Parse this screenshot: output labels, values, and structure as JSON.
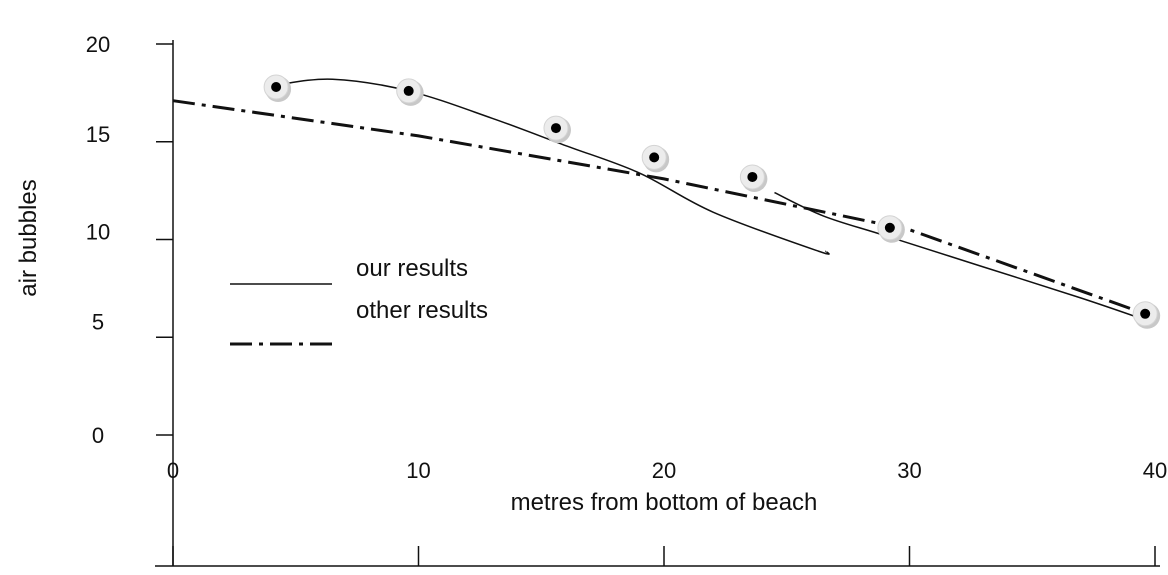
{
  "chart_data": {
    "type": "line",
    "xlabel": "metres from bottom of beach",
    "ylabel": "air bubbles",
    "xlim": [
      0,
      40
    ],
    "ylim": [
      0,
      20
    ],
    "x_ticks": [
      "0",
      "10",
      "20",
      "30",
      "40"
    ],
    "y_ticks": [
      "0",
      "5",
      "10",
      "15",
      "20"
    ],
    "legend_position": "left",
    "points": [
      {
        "x": 4.2,
        "y": 17.8
      },
      {
        "x": 9.6,
        "y": 17.6
      },
      {
        "x": 15.6,
        "y": 15.7
      },
      {
        "x": 19.6,
        "y": 14.2
      },
      {
        "x": 23.6,
        "y": 13.2
      },
      {
        "x": 29.2,
        "y": 10.6
      },
      {
        "x": 39.6,
        "y": 6.2
      }
    ],
    "series": [
      {
        "name": "our results",
        "style": "solid",
        "segments": [
          [
            {
              "x": 4.2,
              "y": 17.9
            },
            {
              "x": 6.5,
              "y": 18.2
            },
            {
              "x": 9.6,
              "y": 17.6
            },
            {
              "x": 13.0,
              "y": 16.2
            },
            {
              "x": 16.0,
              "y": 14.8
            },
            {
              "x": 19.0,
              "y": 13.4
            },
            {
              "x": 22.0,
              "y": 11.4
            },
            {
              "x": 26.3,
              "y": 9.4
            },
            {
              "x": 26.6,
              "y": 9.4
            }
          ],
          [
            {
              "x": 24.5,
              "y": 12.4
            },
            {
              "x": 26.5,
              "y": 11.2
            },
            {
              "x": 29.0,
              "y": 10.2
            },
            {
              "x": 33.0,
              "y": 8.6
            },
            {
              "x": 37.0,
              "y": 7.0
            },
            {
              "x": 39.8,
              "y": 5.8
            }
          ]
        ]
      },
      {
        "name": "other results",
        "style": "dash-dot",
        "segments": [
          [
            {
              "x": 0,
              "y": 17.1
            },
            {
              "x": 10,
              "y": 15.3
            },
            {
              "x": 20,
              "y": 13.1
            },
            {
              "x": 30,
              "y": 10.5
            },
            {
              "x": 39.6,
              "y": 6.2
            }
          ]
        ]
      }
    ]
  }
}
